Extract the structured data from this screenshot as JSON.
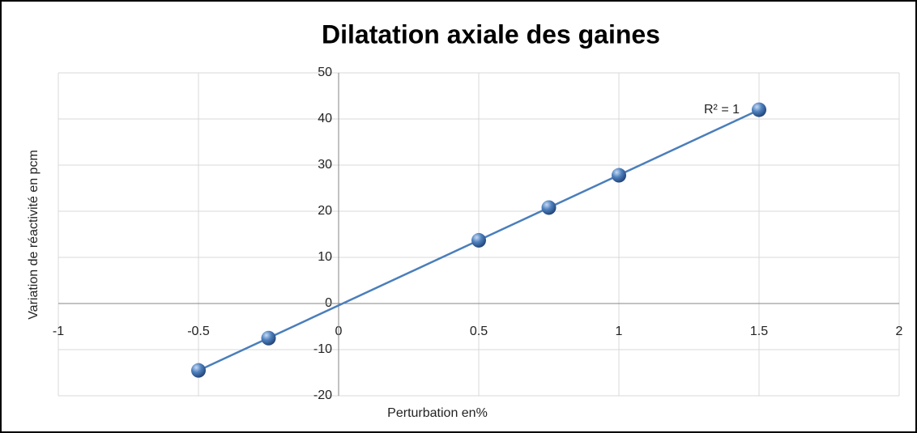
{
  "chart_data": {
    "type": "scatter",
    "title": "Dilatation axiale des gaines",
    "x_label": "Perturbation en%",
    "y_label": "Variation de réactivité en pcm",
    "annotation": "R² = 1",
    "series": [
      {
        "name": "Dilatation axiale",
        "color": "#4a7ebb",
        "x": [
          -0.5,
          -0.25,
          0.5,
          0.75,
          1,
          1.5
        ],
        "values": [
          -14.5,
          -7.5,
          13.7,
          20.8,
          27.8,
          42
        ]
      }
    ],
    "trendline": "linear",
    "xlim": [
      -1,
      2
    ],
    "xticks": [
      -1,
      -0.5,
      0,
      0.5,
      1,
      1.5,
      2
    ],
    "ylim": [
      -20,
      50
    ],
    "yticks": [
      -20,
      -10,
      0,
      10,
      20,
      30,
      40,
      50
    ],
    "grid": true
  }
}
